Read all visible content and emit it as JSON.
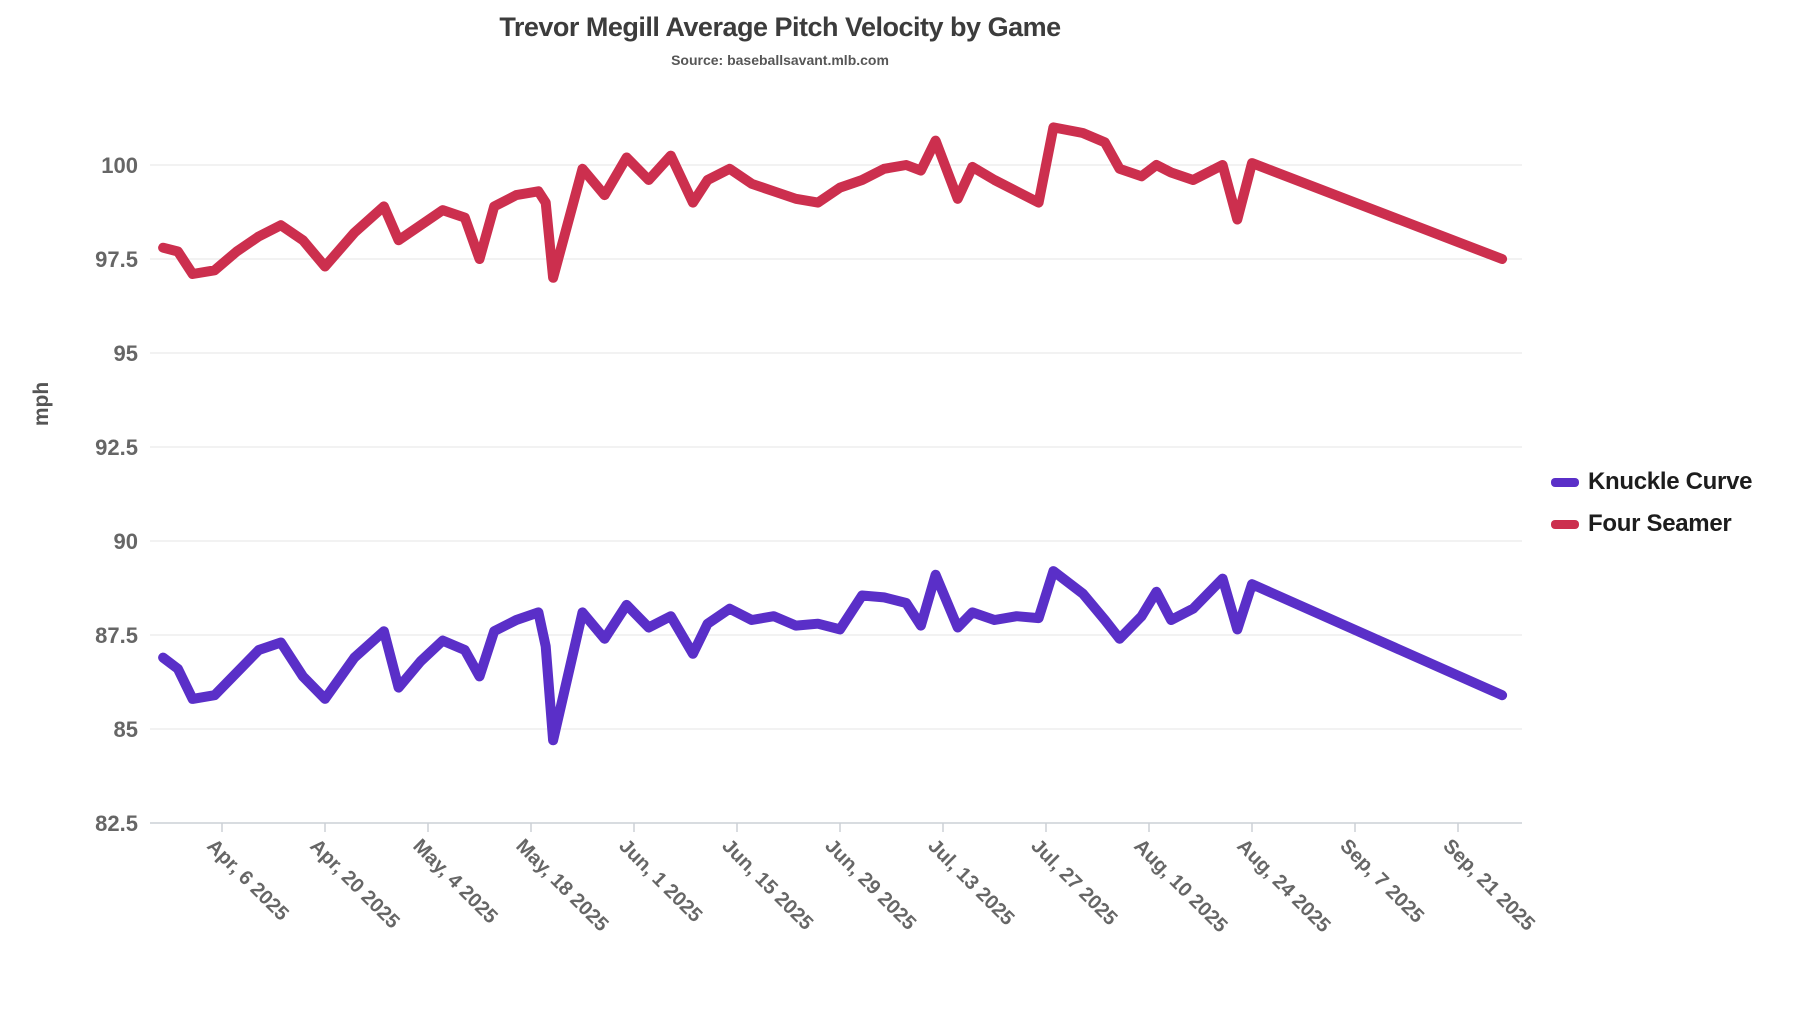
{
  "chart": {
    "title": "Trevor Megill Average Pitch Velocity by Game",
    "subtitle": "Source: baseballsavant.mlb.com",
    "y_axis_title": "mph",
    "legend": [
      {
        "label": "Knuckle Curve",
        "color": "#5a2fc8"
      },
      {
        "label": "Four Seamer",
        "color": "#cc2f4e"
      }
    ]
  },
  "chart_data": {
    "type": "line",
    "title": "Trevor Megill Average Pitch Velocity by Game",
    "subtitle": "Source: baseballsavant.mlb.com",
    "xlabel": "",
    "ylabel": "mph",
    "ylim": [
      82.5,
      101.5
    ],
    "yticks": [
      100,
      97.5,
      95,
      92.5,
      90,
      87.5,
      85,
      82.5
    ],
    "grid": true,
    "legend_position": "right",
    "xtick_labels": [
      "Apr, 6 2025",
      "Apr, 20 2025",
      "May, 4 2025",
      "May, 18 2025",
      "Jun, 1 2025",
      "Jun, 15 2025",
      "Jun, 29 2025",
      "Jul, 13 2025",
      "Jul, 27 2025",
      "Aug, 10 2025",
      "Aug, 24 2025",
      "Sep, 7 2025",
      "Sep, 21 2025"
    ],
    "xtick_days": [
      8,
      22,
      36,
      50,
      64,
      78,
      92,
      106,
      120,
      134,
      148,
      162,
      176
    ],
    "x_dates": [
      "Mar 29",
      "Mar 31",
      "Apr 2",
      "Apr 5",
      "Apr 8",
      "Apr 11",
      "Apr 14",
      "Apr 17",
      "Apr 20",
      "Apr 24",
      "Apr 28",
      "Apr 30",
      "May 3",
      "May 6",
      "May 9",
      "May 11",
      "May 13",
      "May 16",
      "May 19",
      "May 20",
      "May 21",
      "May 25",
      "May 28",
      "May 31",
      "Jun 3",
      "Jun 6",
      "Jun 9",
      "Jun 11",
      "Jun 14",
      "Jun 17",
      "Jun 20",
      "Jun 23",
      "Jun 26",
      "Jun 29",
      "Jul 2",
      "Jul 5",
      "Jul 8",
      "Jul 10",
      "Jul 12",
      "Jul 15",
      "Jul 17",
      "Jul 20",
      "Jul 23",
      "Jul 26",
      "Jul 28",
      "Aug 1",
      "Aug 4",
      "Aug 6",
      "Aug 9",
      "Aug 11",
      "Aug 13",
      "Aug 16",
      "Aug 20",
      "Aug 22",
      "Aug 24",
      "Sep 27"
    ],
    "x_days": [
      0,
      2,
      4,
      7,
      10,
      13,
      16,
      19,
      22,
      26,
      30,
      32,
      35,
      38,
      41,
      43,
      45,
      48,
      51,
      52,
      53,
      57,
      60,
      63,
      66,
      69,
      72,
      74,
      77,
      80,
      83,
      86,
      89,
      92,
      95,
      98,
      101,
      103,
      105,
      108,
      110,
      113,
      116,
      119,
      121,
      125,
      128,
      130,
      133,
      135,
      137,
      140,
      144,
      146,
      148,
      182
    ],
    "series": [
      {
        "name": "Knuckle Curve",
        "color": "#5a2fc8",
        "values": [
          86.9,
          86.6,
          85.8,
          85.9,
          86.5,
          87.1,
          87.3,
          86.4,
          85.8,
          86.9,
          87.6,
          86.1,
          86.8,
          87.35,
          87.1,
          86.4,
          87.6,
          87.9,
          88.1,
          87.2,
          84.7,
          88.1,
          87.4,
          88.3,
          87.7,
          88.0,
          87.0,
          87.8,
          88.2,
          87.9,
          88.0,
          87.75,
          87.8,
          87.65,
          88.55,
          88.5,
          88.35,
          87.75,
          89.1,
          87.7,
          88.1,
          87.9,
          88.0,
          87.95,
          89.2,
          88.6,
          87.9,
          87.4,
          88.0,
          88.65,
          87.9,
          88.2,
          89.0,
          87.65,
          88.85,
          85.9
        ]
      },
      {
        "name": "Four Seamer",
        "color": "#cc2f4e",
        "values": [
          97.8,
          97.7,
          97.1,
          97.2,
          97.7,
          98.1,
          98.4,
          98.0,
          97.3,
          98.2,
          98.9,
          98.0,
          98.4,
          98.8,
          98.6,
          97.5,
          98.9,
          99.2,
          99.3,
          99.0,
          97.0,
          99.9,
          99.2,
          100.2,
          99.6,
          100.25,
          99.0,
          99.6,
          99.9,
          99.5,
          99.3,
          99.1,
          99.0,
          99.4,
          99.6,
          99.9,
          100.0,
          99.85,
          100.65,
          99.1,
          99.95,
          99.6,
          99.3,
          99.0,
          101.0,
          100.85,
          100.6,
          99.9,
          99.7,
          100.0,
          99.8,
          99.6,
          100.0,
          98.55,
          100.05,
          97.5
        ]
      }
    ]
  },
  "style": {
    "gridline_color": "#e6e6e6",
    "axis_line_color": "#ccd0d6",
    "tick_label_color": "#666666",
    "line_width": 10
  }
}
